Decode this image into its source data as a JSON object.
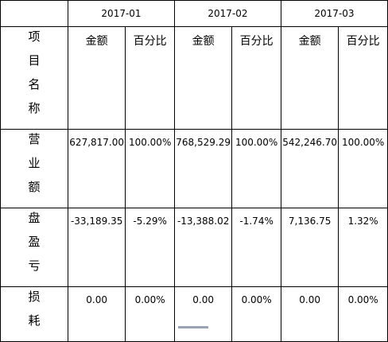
{
  "table": {
    "periods": [
      "2017-01",
      "2017-02",
      "2017-03"
    ],
    "row_header": "项目名称",
    "sub_headers": [
      "金额",
      "百分比",
      "金额",
      "百分比",
      "金额",
      "百分比"
    ],
    "rows": [
      {
        "label": "营业额",
        "cells": [
          "627,817.00",
          "100.00%",
          "768,529.29",
          "100.00%",
          "542,246.70",
          "100.00%"
        ]
      },
      {
        "label": "盘盈亏",
        "cells": [
          "-33,189.35",
          "-5.29%",
          "-13,388.02",
          "-1.74%",
          "7,136.75",
          "1.32%"
        ]
      },
      {
        "label": "损耗",
        "cells": [
          "0.00",
          "0.00%",
          "0.00",
          "0.00%",
          "0.00",
          "0.00%"
        ]
      }
    ]
  }
}
